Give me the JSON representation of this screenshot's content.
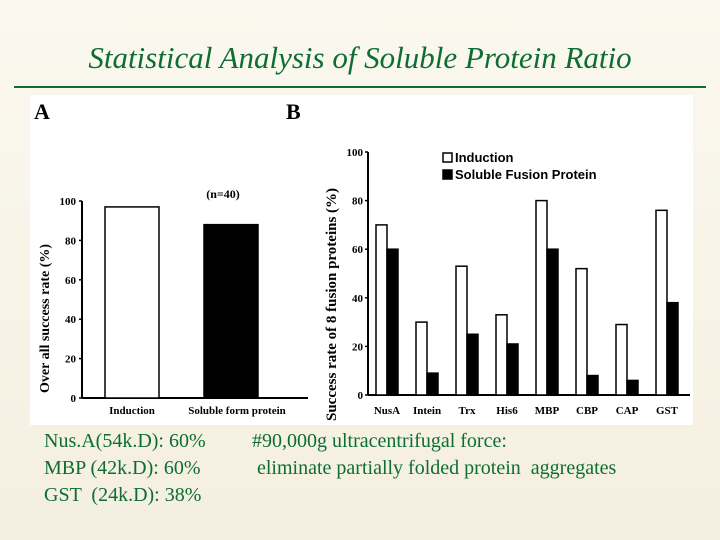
{
  "slide": {
    "title": "Statistical Analysis of Soluble Protein Ratio"
  },
  "notes": {
    "left": [
      "Nus.A(54k.D): 60%",
      "MBP (42k.D): 60%",
      "GST  (24k.D): 38%"
    ],
    "right": [
      "#90,000g ultracentrifugal force:",
      " eliminate partially folded protein  aggregates"
    ]
  },
  "chart_data": [
    {
      "panel": "A",
      "type": "bar",
      "categories": [
        "Induction",
        "Soluble form protein"
      ],
      "values": [
        97,
        88
      ],
      "ylabel": "Over all success rate (%)",
      "annotation": "(n=40)",
      "ylim": [
        0,
        100
      ],
      "yticks": [
        "0",
        "20",
        "40",
        "60",
        "80",
        "100"
      ],
      "colors": [
        "#ffffff",
        "#000000"
      ]
    },
    {
      "panel": "B",
      "type": "bar",
      "categories": [
        "NusA",
        "Intein",
        "Trx",
        "His6",
        "MBP",
        "CBP",
        "CAP",
        "GST"
      ],
      "series": [
        {
          "name": "Induction",
          "values": [
            70,
            30,
            53,
            33,
            80,
            52,
            29,
            76
          ],
          "color": "#ffffff"
        },
        {
          "name": "Soluble Fusion Protein",
          "values": [
            60,
            9,
            25,
            21,
            60,
            8,
            6,
            38
          ],
          "color": "#000000"
        }
      ],
      "ylabel": "Success rate of 8 fusion proteins (%)",
      "ylim": [
        0,
        100
      ],
      "yticks": [
        "0",
        "20",
        "40",
        "60",
        "80",
        "100"
      ],
      "legend_position": "top-right"
    }
  ]
}
